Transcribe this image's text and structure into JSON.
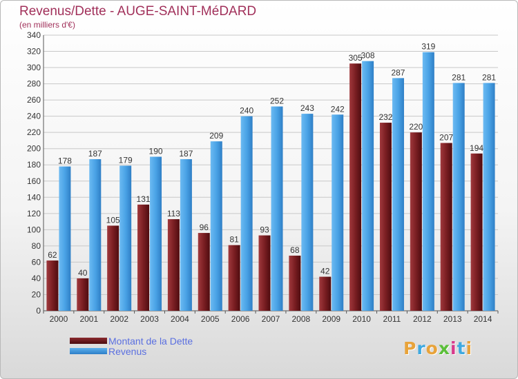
{
  "title": "Revenus/Dette - AUGE-SAINT-MéDARD",
  "subtitle": "(en milliers d'€)",
  "logo": "Proxiti",
  "colors": {
    "title": "#a1305a",
    "debt": "#7a1e22",
    "revenue": "#4aa3e6",
    "legend_text": "#5a6fe0",
    "grid": "#c8c8c8"
  },
  "chart_data": {
    "type": "bar",
    "title": "Revenus/Dette - AUGE-SAINT-MéDARD",
    "subtitle": "(en milliers d'€)",
    "categories": [
      "2000",
      "2001",
      "2002",
      "2003",
      "2004",
      "2005",
      "2006",
      "2007",
      "2008",
      "2009",
      "2010",
      "2011",
      "2012",
      "2013",
      "2014"
    ],
    "series": [
      {
        "name": "Montant de la Dette",
        "values": [
          62,
          40,
          105,
          131,
          113,
          96,
          81,
          93,
          68,
          42,
          305,
          232,
          220,
          207,
          194
        ]
      },
      {
        "name": "Revenus",
        "values": [
          178,
          187,
          179,
          190,
          187,
          209,
          240,
          252,
          243,
          242,
          308,
          287,
          319,
          281,
          281
        ]
      }
    ],
    "ylim": [
      0,
      340
    ],
    "yticks": [
      0,
      20,
      40,
      60,
      80,
      100,
      120,
      140,
      160,
      180,
      200,
      220,
      240,
      260,
      280,
      300,
      320,
      340
    ],
    "grid": true,
    "legend_position": "bottom-left"
  }
}
